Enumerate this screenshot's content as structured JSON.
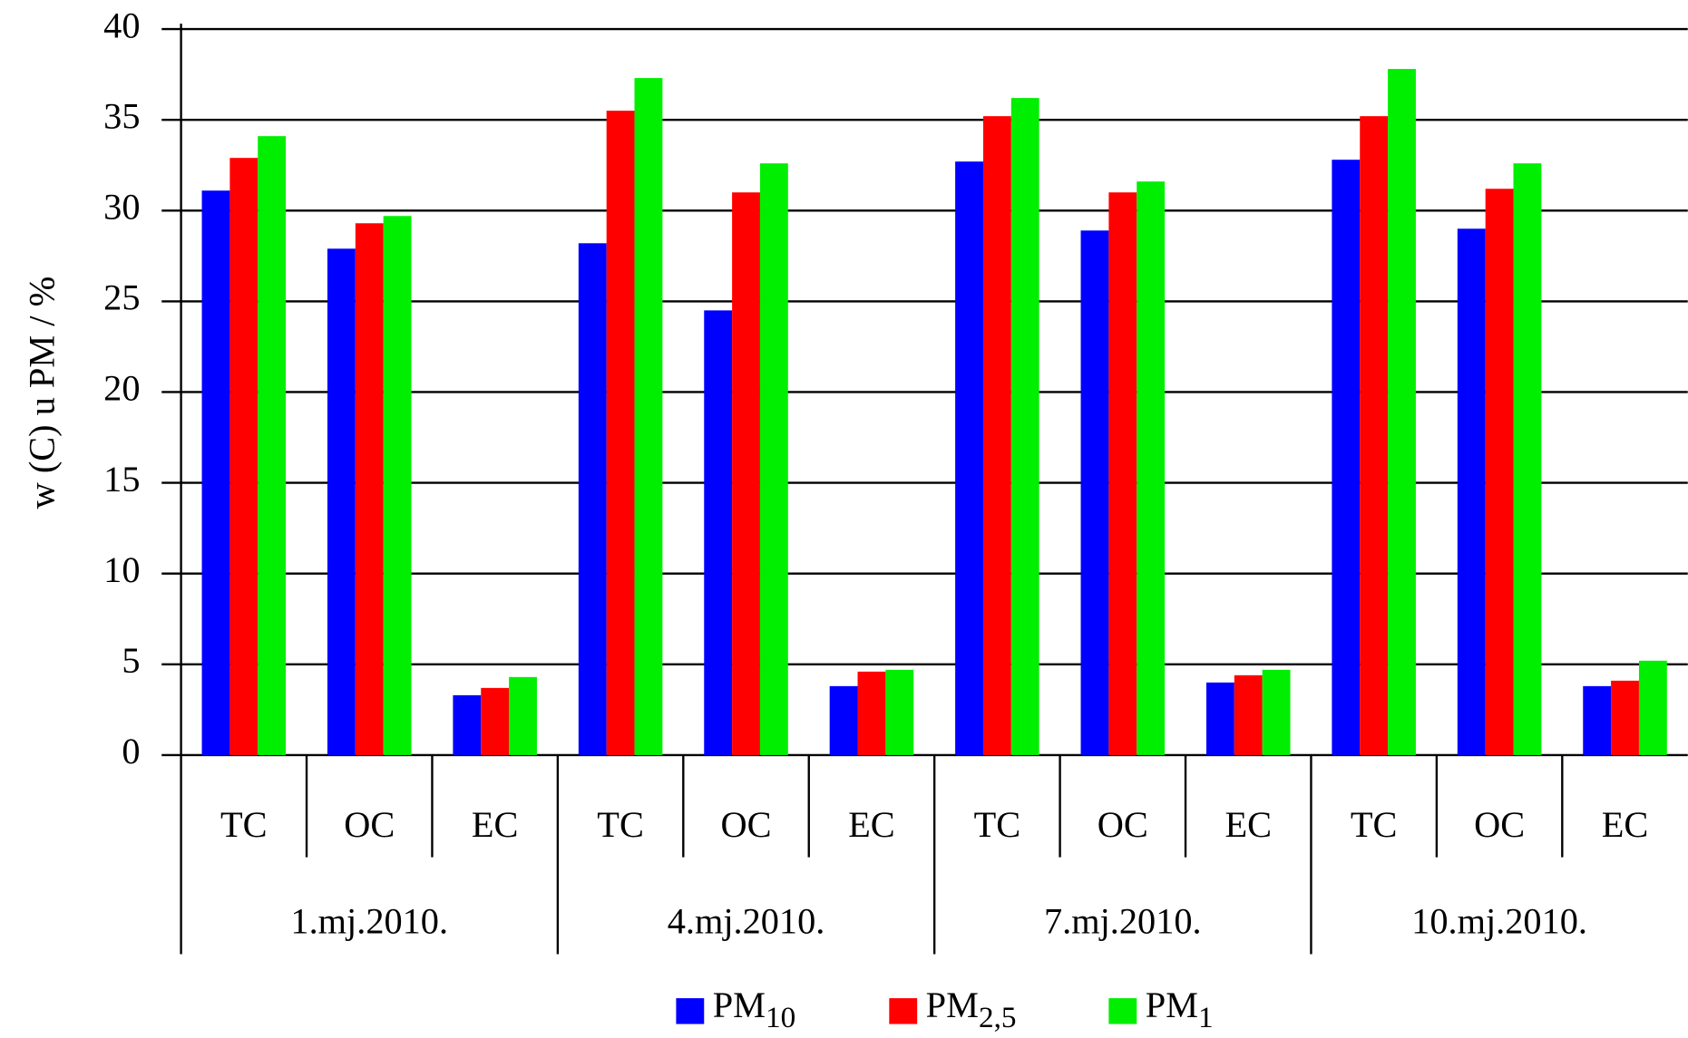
{
  "chart_data": {
    "type": "bar",
    "y_label": "w (C) u PM / %",
    "categories": [
      "TC",
      "OC",
      "EC",
      "TC",
      "OC",
      "EC",
      "TC",
      "OC",
      "EC",
      "TC",
      "OC",
      "EC"
    ],
    "groups": [
      "1.mj.2010.",
      "4.mj.2010.",
      "7.mj.2010.",
      "10.mj.2010."
    ],
    "series": [
      {
        "name": "PM10",
        "color": "#0000ff",
        "values": [
          31.1,
          27.9,
          3.3,
          28.2,
          24.5,
          3.8,
          32.7,
          28.9,
          4.0,
          32.8,
          29.0,
          3.8
        ]
      },
      {
        "name": "PM2,5",
        "color": "#ff0000",
        "values": [
          32.9,
          29.3,
          3.7,
          35.5,
          31.0,
          4.6,
          35.2,
          31.0,
          4.4,
          35.2,
          31.2,
          4.1
        ]
      },
      {
        "name": "PM1",
        "color": "#00ee00",
        "values": [
          34.1,
          29.7,
          4.3,
          37.3,
          32.6,
          4.7,
          36.2,
          31.6,
          4.7,
          37.8,
          32.6,
          5.2
        ]
      }
    ],
    "ylim": [
      0,
      40
    ],
    "yticks": [
      0,
      5,
      10,
      15,
      20,
      25,
      30,
      35,
      40
    ],
    "grid": true,
    "legend": "bottom"
  }
}
